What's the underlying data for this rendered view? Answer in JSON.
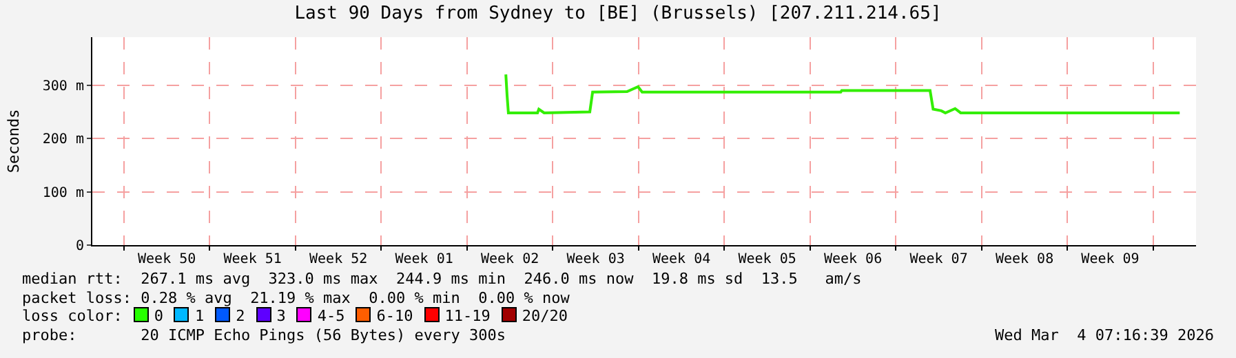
{
  "chart_data": {
    "type": "line",
    "title": "Last 90 Days from Sydney to [BE] (Brussels) [207.211.214.65]",
    "ylabel": "Seconds",
    "x": [
      "2026-01-08T04:00",
      "2026-01-08T06:30",
      "2026-01-08T09:00",
      "2026-01-10T18:00",
      "2026-01-10T20:40",
      "2026-01-11T07:00",
      "2026-01-15T00:30",
      "2026-01-15T06:00",
      "2026-01-18T01:30",
      "2026-01-18T23:00",
      "2026-01-19T07:00",
      "2026-01-30T02:00",
      "2026-02-04T12:00",
      "2026-02-04T14:00",
      "2026-02-11T19:00",
      "2026-02-12T01:00",
      "2026-02-12T17:00",
      "2026-02-13T01:00",
      "2026-02-13T20:00",
      "2026-02-14T07:00",
      "2026-03-04T04:00"
    ],
    "series": [
      {
        "color": "#33ee00",
        "values": [
          320,
          280,
          248,
          248,
          255,
          248,
          250,
          287,
          288,
          297,
          287,
          287,
          287,
          290,
          290,
          255,
          252,
          248,
          256,
          248,
          248
        ]
      }
    ],
    "xlim": [
      "2025-12-05T10:00",
      "2026-03-05T12:00"
    ],
    "xticks": [
      {
        "value": "2025-12-08",
        "label": null
      },
      {
        "value": "2025-12-15",
        "label": null
      },
      {
        "value": "2025-12-22",
        "label": null
      },
      {
        "value": "2025-12-29",
        "label": null
      },
      {
        "value": "2026-01-05",
        "label": null
      },
      {
        "value": "2026-01-12",
        "label": null
      },
      {
        "value": "2026-01-19",
        "label": null
      },
      {
        "value": "2026-01-26",
        "label": null
      },
      {
        "value": "2026-02-02",
        "label": null
      },
      {
        "value": "2026-02-09",
        "label": null
      },
      {
        "value": "2026-02-16",
        "label": null
      },
      {
        "value": "2026-02-23",
        "label": null
      },
      {
        "value": "2026-03-02",
        "label": null
      },
      {
        "value": "2025-12-11T12:00",
        "label": "Week 50"
      },
      {
        "value": "2025-12-18T12:00",
        "label": "Week 51"
      },
      {
        "value": "2025-12-25T12:00",
        "label": "Week 52"
      },
      {
        "value": "2026-01-01T12:00",
        "label": "Week 01"
      },
      {
        "value": "2026-01-08T12:00",
        "label": "Week 02"
      },
      {
        "value": "2026-01-15T12:00",
        "label": "Week 03"
      },
      {
        "value": "2026-01-22T12:00",
        "label": "Week 04"
      },
      {
        "value": "2026-01-29T12:00",
        "label": "Week 05"
      },
      {
        "value": "2026-02-05T12:00",
        "label": "Week 06"
      },
      {
        "value": "2026-02-12T12:00",
        "label": "Week 07"
      },
      {
        "value": "2026-02-19T12:00",
        "label": "Week 08"
      },
      {
        "value": "2026-02-26T12:00",
        "label": "Week 09"
      }
    ],
    "ylim": [
      0,
      390
    ],
    "yticks": [
      0,
      {
        "value": 100,
        "label": "100 m"
      },
      {
        "value": 200,
        "label": "200 m"
      },
      {
        "value": 300,
        "label": "300 m"
      }
    ],
    "grid": true,
    "marker": "none",
    "line_style": "solid",
    "annotations": [
      "median rtt:  267.1 ms avg  323.0 ms max  244.9 ms min  246.0 ms now  19.8 ms sd  13.5   am/s",
      "packet loss: 0.28 % avg  21.19 % max  0.00 % min  0.00 % now",
      "loss color:",
      "0",
      "1",
      "2",
      "3",
      "4-5",
      "6-10",
      "11-19",
      "20/20",
      "probe:       20 ICMP Echo Pings (56 Bytes) every 300s",
      "Wed Mar  4 07:16:39 2026"
    ]
  }
}
